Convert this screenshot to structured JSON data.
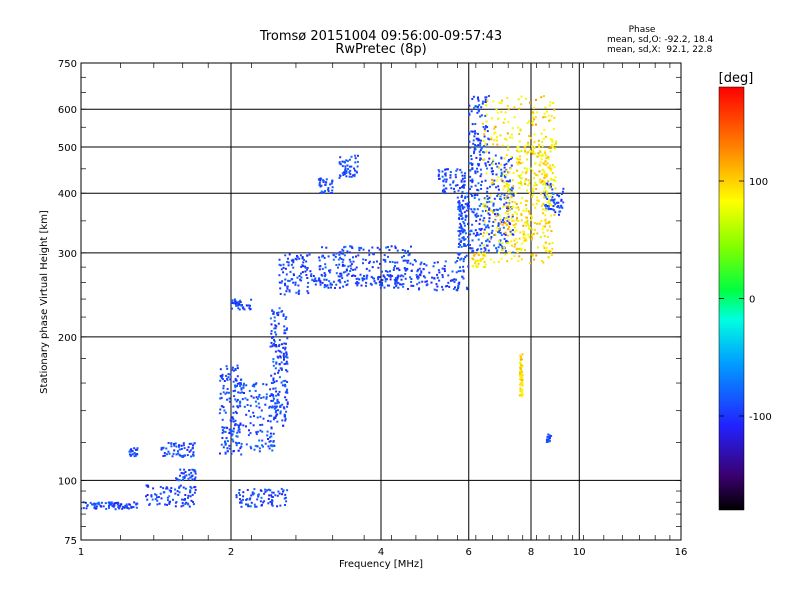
{
  "chart_data": {
    "type": "scatter",
    "title": "Tromsø 20151004 09:56:00-09:57:43",
    "subtitle": "RwPretec (8p)",
    "xlabel": "Frequency [MHz]",
    "ylabel": "Stationary phase Virtual Height [km]",
    "x_scale": "log",
    "y_scale": "log",
    "xlim": [
      1,
      16
    ],
    "ylim": [
      75,
      750
    ],
    "x_ticks": [
      1,
      2,
      4,
      6,
      8,
      10,
      16
    ],
    "x_tick_labels": [
      "1",
      "2",
      "4",
      "6",
      "8",
      "10",
      "16"
    ],
    "y_ticks": [
      75,
      100,
      200,
      300,
      400,
      500,
      600,
      750
    ],
    "y_tick_labels": [
      "75",
      "100",
      "200",
      "300",
      "400",
      "500",
      "600",
      "750"
    ],
    "grid": true,
    "stats": {
      "header": "Phase",
      "line_o": "mean, sd,O: -92.2, 18.4",
      "line_x": "mean, sd,X:  92.1, 22.8"
    },
    "colorbar": {
      "label": "[deg]",
      "range": [
        -180,
        180
      ],
      "ticks": [
        100,
        0,
        -100
      ],
      "tick_labels": [
        "100",
        "0",
        "-100"
      ]
    },
    "series": [
      {
        "name": "O",
        "phase_mean": -92.2,
        "phase_sd": 18.4,
        "segments": [
          {
            "f_range": [
              1.0,
              1.3
            ],
            "h_range": [
              87,
              90
            ]
          },
          {
            "f_range": [
              1.35,
              1.7
            ],
            "h_range": [
              88,
              98
            ]
          },
          {
            "f_range": [
              1.25,
              1.3
            ],
            "h_range": [
              112,
              117
            ]
          },
          {
            "f_range": [
              1.45,
              1.7
            ],
            "h_range": [
              112,
              120
            ]
          },
          {
            "f_range": [
              1.55,
              1.7
            ],
            "h_range": [
              100,
              106
            ]
          },
          {
            "f_range": [
              1.9,
              2.1
            ],
            "h_range": [
              113,
              175
            ]
          },
          {
            "f_range": [
              2.05,
              2.45
            ],
            "h_range": [
              115,
              160
            ]
          },
          {
            "f_range": [
              2.4,
              2.6
            ],
            "h_range": [
              130,
              230
            ]
          },
          {
            "f_range": [
              2.0,
              2.2
            ],
            "h_range": [
              228,
              240
            ]
          },
          {
            "f_range": [
              2.05,
              2.6
            ],
            "h_range": [
              88,
              96
            ]
          },
          {
            "f_range": [
              2.5,
              2.9
            ],
            "h_range": [
              245,
              300
            ]
          },
          {
            "f_range": [
              2.9,
              4.4
            ],
            "h_range": [
              253,
              270
            ]
          },
          {
            "f_range": [
              3.0,
              4.6
            ],
            "h_range": [
              268,
              310
            ]
          },
          {
            "f_range": [
              3.0,
              3.2
            ],
            "h_range": [
              400,
              430
            ]
          },
          {
            "f_range": [
              3.3,
              3.6
            ],
            "h_range": [
              430,
              480
            ]
          },
          {
            "f_range": [
              4.4,
              6.0
            ],
            "h_range": [
              250,
              290
            ]
          },
          {
            "f_range": [
              5.7,
              6.0
            ],
            "h_range": [
              290,
              400
            ]
          },
          {
            "f_range": [
              5.2,
              5.9
            ],
            "h_range": [
              400,
              450
            ]
          },
          {
            "f_range": [
              6.0,
              6.6
            ],
            "h_range": [
              300,
              640
            ]
          },
          {
            "f_range": [
              6.6,
              7.4
            ],
            "h_range": [
              300,
              480
            ]
          },
          {
            "f_range": [
              8.5,
              9.3
            ],
            "h_range": [
              360,
              420
            ]
          },
          {
            "f_range": [
              8.6,
              8.8
            ],
            "h_range": [
              120,
              125
            ]
          }
        ]
      },
      {
        "name": "X",
        "phase_mean": 92.1,
        "phase_sd": 22.8,
        "segments": [
          {
            "f_range": [
              6.1,
              6.5
            ],
            "h_range": [
              280,
              300
            ]
          },
          {
            "f_range": [
              6.4,
              9.0
            ],
            "h_range": [
              285,
              640
            ]
          },
          {
            "f_range": [
              7.0,
              8.8
            ],
            "h_range": [
              300,
              420
            ]
          },
          {
            "f_range": [
              7.5,
              9.0
            ],
            "h_range": [
              420,
              520
            ]
          },
          {
            "f_range": [
              7.6,
              7.7
            ],
            "h_range": [
              150,
              185
            ]
          }
        ]
      }
    ]
  }
}
